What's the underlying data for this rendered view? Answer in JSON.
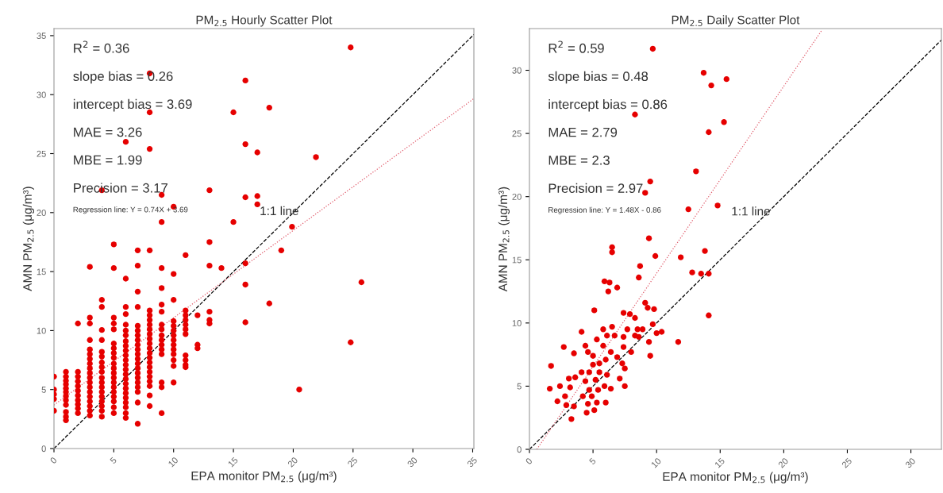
{
  "chart_data": [
    {
      "type": "scatter",
      "title": "PM$_{2.5}$ Hourly Scatter Plot",
      "xlabel": "EPA monitor PM$_{2.5}$ (μg/m³)",
      "ylabel": "AMN PM$_{2.5}$ (μg/m³)",
      "xlim": [
        0,
        35.1
      ],
      "ylim": [
        0,
        35.6
      ],
      "xticks": [
        0,
        5,
        10,
        15,
        20,
        25,
        30,
        35
      ],
      "yticks": [
        0,
        5,
        10,
        15,
        20,
        25,
        30,
        35
      ],
      "grid": false,
      "annotations": [
        "R$^{2}$ = 0.36",
        "slope bias = 0.26",
        "intercept bias = 3.69",
        "MAE = 3.26",
        "MBE = 1.99",
        "Precision = 3.17",
        "Regression line: Y = 0.74X + 3.69",
        "1:1 line"
      ],
      "series": [
        {
          "marker": "circle",
          "color": "#e60000",
          "x": [
            0,
            0,
            0,
            0,
            0,
            1,
            1,
            1,
            1,
            1,
            1,
            1,
            1,
            1,
            1,
            1,
            1,
            2,
            2,
            2,
            2,
            2,
            2,
            2,
            2,
            2,
            2,
            2,
            3,
            3,
            3,
            3,
            3,
            3,
            3,
            3,
            3,
            3,
            3,
            3,
            3,
            3,
            3,
            3,
            3,
            3,
            3,
            4,
            4,
            4,
            4,
            4,
            4,
            4,
            4,
            4,
            4,
            4,
            4,
            4,
            4,
            4,
            4,
            4,
            4,
            4,
            5,
            5,
            5,
            5,
            5,
            5,
            5,
            5,
            5,
            5,
            5,
            5,
            5,
            5,
            5,
            5,
            5,
            5,
            5,
            5,
            6,
            6,
            6,
            6,
            6,
            6,
            6,
            6,
            6,
            6,
            6,
            6,
            6,
            6,
            6,
            6,
            6,
            6,
            6,
            6,
            6,
            6,
            6,
            6,
            7,
            7,
            7,
            7,
            7,
            7,
            7,
            7,
            7,
            7,
            7,
            7,
            7,
            7,
            7,
            7,
            7,
            7,
            7,
            7,
            7,
            8,
            8,
            8,
            8,
            8,
            8,
            8,
            8,
            8,
            8,
            8,
            8,
            8,
            8,
            8,
            8,
            8,
            8,
            8,
            8,
            8,
            8,
            8,
            9,
            9,
            9,
            9,
            9,
            9,
            9,
            9,
            9,
            9,
            9,
            9,
            9,
            9,
            9,
            9,
            10,
            10,
            10,
            10,
            10,
            10,
            10,
            10,
            10,
            10,
            10,
            10,
            10,
            10,
            11,
            11,
            11,
            11,
            11,
            11,
            11,
            11,
            11,
            11,
            11,
            12,
            12,
            12,
            13,
            13,
            13,
            13,
            13,
            13,
            14,
            15,
            15,
            16,
            16,
            16,
            16,
            16,
            16,
            17,
            17,
            17,
            18,
            18,
            19,
            19.9,
            20.5,
            21.9,
            24.8,
            24.8,
            25.7
          ],
          "values": [
            6.1,
            5.0,
            4.6,
            4.2,
            3.2,
            6.5,
            6.1,
            5.75,
            5.45,
            5.1,
            4.8,
            4.45,
            4.1,
            3.7,
            3.1,
            2.7,
            2.4,
            10.6,
            6.5,
            6.1,
            5.7,
            5.3,
            4.9,
            4.5,
            4.1,
            3.75,
            3.4,
            3.0,
            15.4,
            11.1,
            10.6,
            9.2,
            8.4,
            8.0,
            7.6,
            7.2,
            6.8,
            6.4,
            6.0,
            5.6,
            5.2,
            4.8,
            4.4,
            4.0,
            3.6,
            3.2,
            2.8,
            21.9,
            12.6,
            12.0,
            10.05,
            9.2,
            8.2,
            7.8,
            7.3,
            6.9,
            6.5,
            6.0,
            5.6,
            5.2,
            4.8,
            4.4,
            4.0,
            3.6,
            3.2,
            2.7,
            17.3,
            15.3,
            11.1,
            10.6,
            10.1,
            8.9,
            8.5,
            8.1,
            7.7,
            7.2,
            6.8,
            6.4,
            6.0,
            5.6,
            5.2,
            4.8,
            4.4,
            4.0,
            3.5,
            3.0,
            26.0,
            14.4,
            12.0,
            11.4,
            10.5,
            10.0,
            9.6,
            9.1,
            8.7,
            8.3,
            7.9,
            7.5,
            7.1,
            6.7,
            6.3,
            5.9,
            5.5,
            5.1,
            4.7,
            4.3,
            3.9,
            3.5,
            3.0,
            2.6,
            16.8,
            15.5,
            13.3,
            12.0,
            10.4,
            10.0,
            9.6,
            9.2,
            8.8,
            8.4,
            8.0,
            7.6,
            7.2,
            6.8,
            6.4,
            6.0,
            5.6,
            5.2,
            4.8,
            3.9,
            2.1,
            31.8,
            28.5,
            25.4,
            16.8,
            11.7,
            11.3,
            10.9,
            10.5,
            10.1,
            9.7,
            9.3,
            8.9,
            8.5,
            8.1,
            7.7,
            7.3,
            6.9,
            6.5,
            6.1,
            5.7,
            5.3,
            4.5,
            3.6,
            21.5,
            19.2,
            15.3,
            13.6,
            12.2,
            11.6,
            10.5,
            10.1,
            9.6,
            9.2,
            8.8,
            8.4,
            8.0,
            5.6,
            5.2,
            3.0,
            20.5,
            14.8,
            12.6,
            10.8,
            10.4,
            10.0,
            9.6,
            9.2,
            8.8,
            8.4,
            8.0,
            7.5,
            7.0,
            5.6,
            16.4,
            11.7,
            11.3,
            10.9,
            10.5,
            10.1,
            9.7,
            7.9,
            7.5,
            7.1,
            6.9,
            11.3,
            8.8,
            8.5,
            21.9,
            17.5,
            15.5,
            11.6,
            10.9,
            10.6,
            15.3,
            28.5,
            19.2,
            31.2,
            25.8,
            21.3,
            15.7,
            13.9,
            10.7,
            25.1,
            21.4,
            20.7,
            28.9,
            12.3,
            16.8,
            18.8,
            5.0,
            24.7,
            34.0,
            9.0,
            14.1
          ]
        },
        {
          "type": "line",
          "color": "#000000",
          "line_style": "dashed",
          "x": [
            0,
            35.1
          ],
          "values": [
            0,
            35.1
          ]
        },
        {
          "type": "line",
          "color": "#e05a6a",
          "line_style": "dotted",
          "x": [
            0,
            35.1
          ],
          "values": [
            3.69,
            29.66
          ]
        }
      ]
    },
    {
      "type": "scatter",
      "title": "PM$_{2.5}$ Daily Scatter Plot",
      "xlabel": "EPA monitor PM$_{2.5}$ (μg/m³)",
      "ylabel": "AMN PM$_{2.5}$ (μg/m³)",
      "xlim": [
        0,
        32.4
      ],
      "ylim": [
        0,
        33.3
      ],
      "xticks": [
        0,
        5,
        10,
        15,
        20,
        25,
        30
      ],
      "yticks": [
        0,
        5,
        10,
        15,
        20,
        25,
        30
      ],
      "grid": false,
      "annotations": [
        "R$^{2}$ = 0.59",
        "slope bias = 0.48",
        "intercept bias = 0.86",
        "MAE = 2.79",
        "MBE = 2.3",
        "Precision = 2.97",
        "Regression line: Y = 1.48X - 0.86",
        "1:1 line"
      ],
      "series": [
        {
          "marker": "circle",
          "color": "#e60000",
          "x": [
            9.7,
            13.7,
            14.3,
            15.5,
            8.3,
            15.3,
            14.1,
            13.1,
            9.5,
            9.1,
            12.5,
            14.8,
            9.4,
            6.5,
            6.5,
            9.9,
            11.9,
            13.8,
            8.7,
            12.8,
            13.5,
            14.1,
            5.9,
            6.3,
            6.2,
            6.9,
            8.6,
            5.1,
            9.1,
            9.3,
            9.8,
            7.4,
            7.9,
            8.3,
            9.7,
            14.1,
            4.1,
            5.8,
            6.5,
            7.7,
            8.5,
            8.9,
            10.0,
            10.4,
            9.4,
            11.7,
            2.7,
            4.4,
            5.3,
            6.1,
            6.7,
            7.4,
            8.3,
            8.6,
            7.4,
            3.5,
            4.6,
            5.0,
            5.8,
            6.4,
            6.9,
            8.0,
            7.3,
            7.5,
            9.5,
            1.7,
            3.6,
            4.1,
            4.7,
            5.0,
            5.5,
            6.0,
            5.5,
            6.1,
            7.1,
            1.6,
            2.4,
            3.1,
            3.2,
            4.4,
            5.2,
            5.9,
            6.4,
            7.5,
            2.2,
            2.8,
            2.9,
            3.5,
            3.3,
            4.2,
            4.6,
            4.5,
            5.1,
            4.9,
            5.3,
            6.0,
            4.7,
            5.4
          ],
          "values": [
            31.7,
            29.8,
            28.8,
            29.3,
            26.5,
            25.9,
            25.1,
            22.0,
            21.2,
            20.3,
            19.0,
            19.3,
            16.7,
            16.0,
            15.6,
            15.3,
            15.2,
            15.7,
            14.5,
            14.0,
            13.9,
            13.9,
            13.3,
            13.2,
            12.5,
            12.8,
            13.6,
            11.0,
            11.6,
            11.2,
            11.1,
            10.8,
            10.7,
            10.4,
            9.9,
            10.6,
            9.3,
            9.5,
            9.7,
            9.5,
            9.5,
            9.5,
            9.2,
            9.3,
            8.5,
            8.5,
            8.1,
            8.2,
            8.7,
            9.0,
            9.0,
            8.9,
            9.0,
            8.9,
            8.1,
            7.6,
            7.7,
            7.4,
            8.2,
            7.7,
            7.3,
            7.7,
            6.8,
            6.4,
            7.4,
            6.6,
            5.7,
            6.1,
            6.1,
            6.7,
            6.8,
            7.1,
            6.1,
            5.9,
            5.6,
            4.8,
            5.0,
            5.6,
            4.9,
            5.4,
            5.5,
            5.0,
            4.8,
            5.0,
            3.8,
            4.2,
            3.5,
            3.4,
            2.4,
            4.2,
            3.6,
            2.9,
            3.1,
            4.2,
            3.7,
            3.7,
            4.7,
            4.7
          ]
        },
        {
          "type": "line",
          "color": "#000000",
          "line_style": "dashed",
          "x": [
            0,
            32.4
          ],
          "values": [
            0,
            32.4
          ]
        },
        {
          "type": "line",
          "color": "#e05a6a",
          "line_style": "dotted",
          "x": [
            0.58,
            23.0
          ],
          "values": [
            0,
            33.18
          ]
        }
      ]
    }
  ]
}
